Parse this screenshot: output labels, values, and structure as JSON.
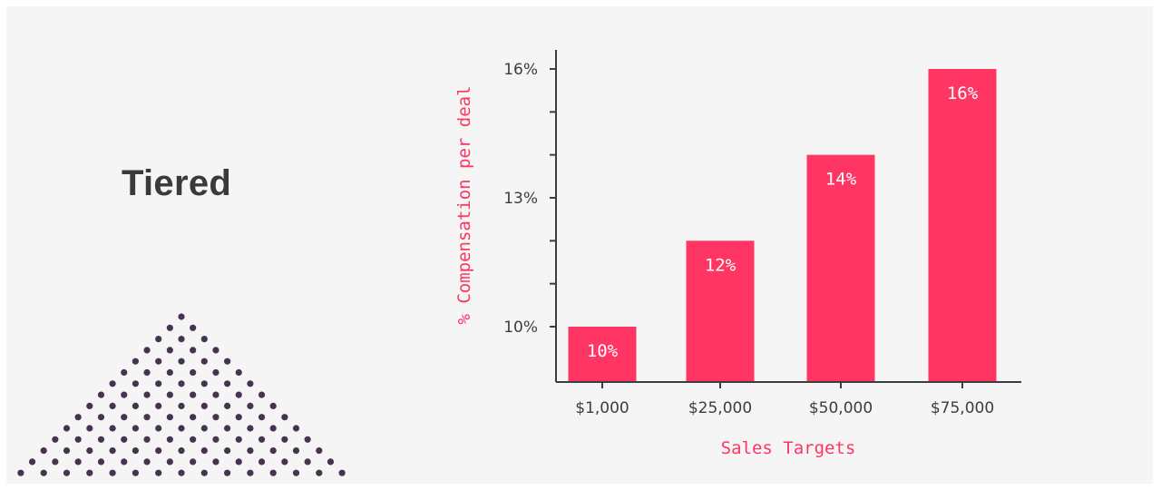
{
  "heading": "Tiered",
  "colors": {
    "bar": "#ff3563",
    "axis": "#3d3d40",
    "axis_title": "#ff3563",
    "background": "#f4f5f4",
    "dots": "#46344f",
    "heading": "#3a3a3c"
  },
  "decoration": {
    "name": "dot-triangle",
    "rows": 15
  },
  "chart_data": {
    "type": "bar",
    "title": "",
    "xlabel": "Sales Targets",
    "ylabel": "% Compensation per deal",
    "categories": [
      "$1,000",
      "$25,000",
      "$50,000",
      "$75,000"
    ],
    "values": [
      10,
      12,
      14,
      16
    ],
    "value_labels": [
      "10%",
      "12%",
      "14%",
      "16%"
    ],
    "yticks": [
      10,
      13,
      16
    ],
    "ytick_labels": [
      "10%",
      "13%",
      "16%"
    ],
    "minor_yticks": [
      10,
      11,
      12,
      13,
      14,
      15,
      16
    ],
    "ylim": [
      8.7,
      16.5
    ],
    "grid": false,
    "legend": null
  }
}
